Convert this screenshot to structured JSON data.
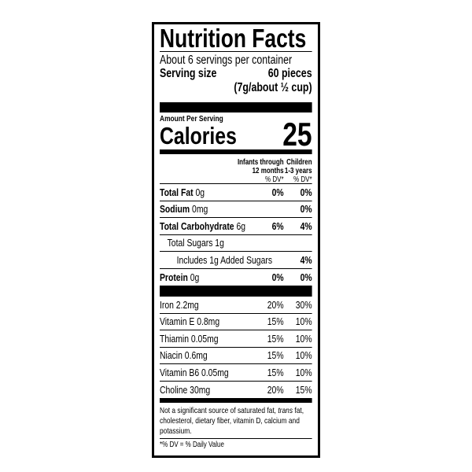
{
  "title": "Nutrition Facts",
  "servings_per_container": "About 6 servings per container",
  "serving_size": {
    "label": "Serving size",
    "value": "60 pieces",
    "detail": "(7g/about ½ cup)"
  },
  "amount_per_serving": "Amount Per Serving",
  "calories": {
    "label": "Calories",
    "value": "25"
  },
  "columns": {
    "col1": [
      "Infants through",
      "12 months",
      "% DV*"
    ],
    "col2": [
      "Children",
      "1-3 years",
      "% DV*"
    ]
  },
  "nutrients": [
    {
      "name": "Total Fat",
      "amount": "0g",
      "col1": "0%",
      "col2": "0%"
    },
    {
      "name": "Sodium",
      "amount": "0mg",
      "col1": "",
      "col2": "0%"
    },
    {
      "name": "Total Carbohydrate",
      "amount": "6g",
      "col1": "6%",
      "col2": "4%"
    },
    {
      "name": "",
      "amount": "Total Sugars 1g",
      "col1": "",
      "col2": ""
    },
    {
      "name": "",
      "amount": "Includes 1g Added Sugars",
      "col1": "",
      "col2": "4%"
    },
    {
      "name": "Protein",
      "amount": "0g",
      "col1": "0%",
      "col2": "0%"
    }
  ],
  "vitamins": [
    {
      "name": "Iron 2.2mg",
      "col1": "20%",
      "col2": "30%"
    },
    {
      "name": "Vitamin E 0.8mg",
      "col1": "15%",
      "col2": "10%"
    },
    {
      "name": "Thiamin 0.05mg",
      "col1": "15%",
      "col2": "10%"
    },
    {
      "name": "Niacin 0.6mg",
      "col1": "15%",
      "col2": "10%"
    },
    {
      "name": "Vitamin B6 0.05mg",
      "col1": "15%",
      "col2": "10%"
    },
    {
      "name": "Choline 30mg",
      "col1": "20%",
      "col2": "15%"
    }
  ],
  "footnote": {
    "before": "Not a significant source of saturated fat, ",
    "italic": "trans",
    "after": " fat, cholesterol, dietary fiber, vitamin D, calcium and potassium."
  },
  "dv_note": "*% DV = % Daily Value"
}
